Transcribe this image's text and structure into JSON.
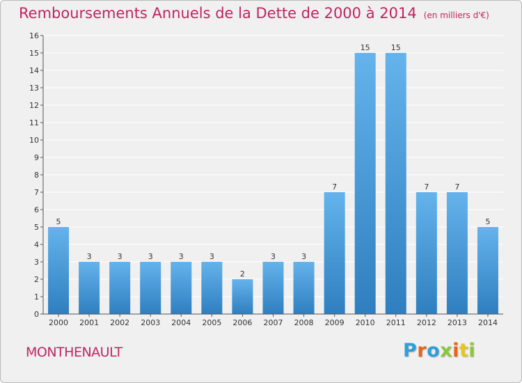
{
  "header": {
    "title": "Remboursements Annuels de la Dette de 2000 à 2014",
    "subtitle": "(en milliers d'€)"
  },
  "footer": {
    "commune": "MONTHENAULT",
    "brand": "Proxiti",
    "brand_colors": [
      "#2e9fd8",
      "#e8641b",
      "#2e9fd8",
      "#8cc63f",
      "#e8641b",
      "#e8c51b",
      "#8cc63f"
    ]
  },
  "colors": {
    "accent": "#c0245f",
    "bar_light": "#64b3ec",
    "bar_dark": "#2f7fc0",
    "background": "#f0f0f0",
    "grid": "#ffffff"
  },
  "chart_data": {
    "type": "bar",
    "title": "Remboursements Annuels de la Dette de 2000 à 2014",
    "subtitle": "(en milliers d'€)",
    "categories": [
      "2000",
      "2001",
      "2002",
      "2003",
      "2004",
      "2005",
      "2006",
      "2007",
      "2008",
      "2009",
      "2010",
      "2011",
      "2012",
      "2013",
      "2014"
    ],
    "values": [
      5,
      3,
      3,
      3,
      3,
      3,
      2,
      3,
      3,
      7,
      15,
      15,
      7,
      7,
      5
    ],
    "ylim": [
      0,
      16
    ],
    "yticks": [
      0,
      1,
      2,
      3,
      4,
      5,
      6,
      7,
      8,
      9,
      10,
      11,
      12,
      13,
      14,
      15,
      16
    ],
    "grid": true,
    "data_labels": true,
    "xlabel": "",
    "ylabel": ""
  }
}
